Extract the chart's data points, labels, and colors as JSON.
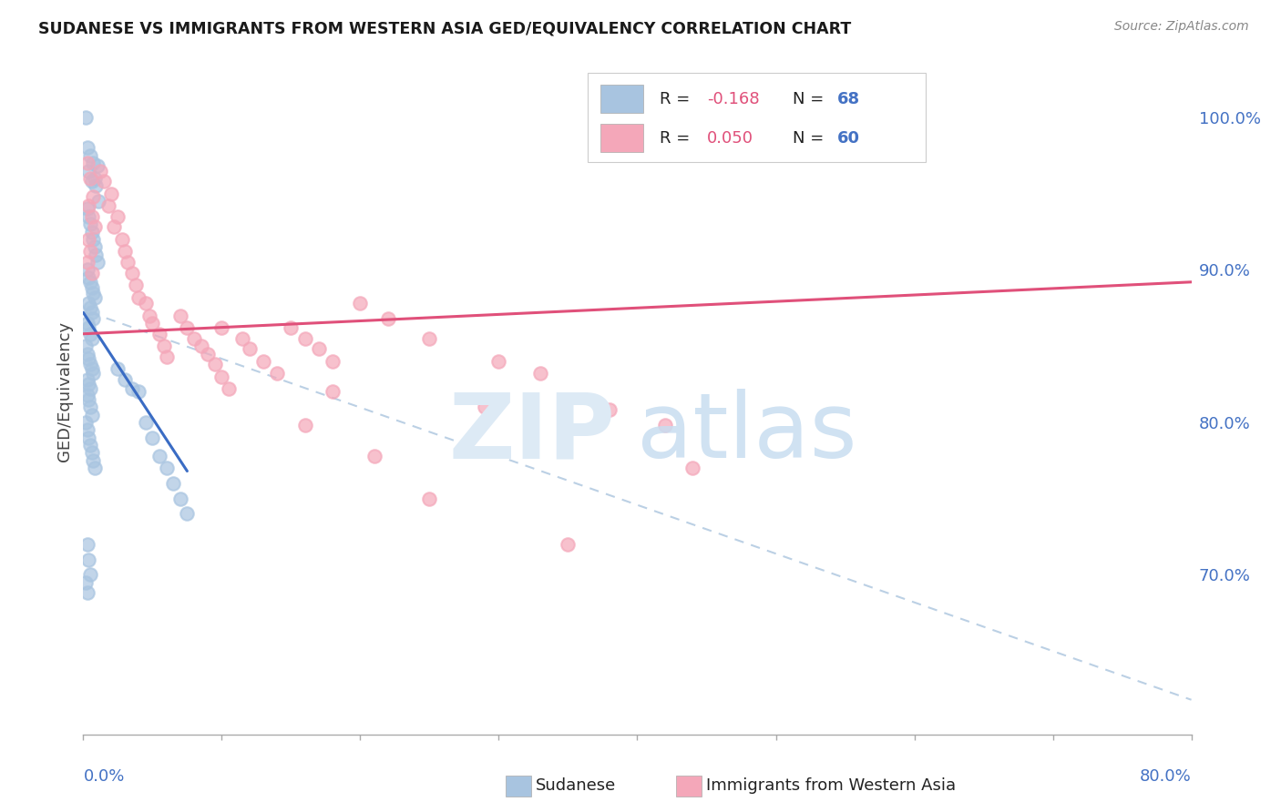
{
  "title": "SUDANESE VS IMMIGRANTS FROM WESTERN ASIA GED/EQUIVALENCY CORRELATION CHART",
  "source": "Source: ZipAtlas.com",
  "ylabel": "GED/Equivalency",
  "yticks_right": [
    0.7,
    0.8,
    0.9,
    1.0
  ],
  "ytick_labels_right": [
    "70.0%",
    "80.0%",
    "90.0%",
    "100.0%"
  ],
  "xlim": [
    0.0,
    0.8
  ],
  "ylim": [
    0.595,
    1.045
  ],
  "blue_color": "#a8c4e0",
  "pink_color": "#f4a7b9",
  "trend_blue": "#3a6cc4",
  "trend_pink": "#e0507a",
  "text_blue": "#4472c4",
  "background": "#ffffff",
  "grid_color": "#d8d8d8",
  "sudanese_x": [
    0.002,
    0.003,
    0.004,
    0.005,
    0.006,
    0.007,
    0.008,
    0.009,
    0.01,
    0.011,
    0.003,
    0.004,
    0.005,
    0.006,
    0.007,
    0.008,
    0.009,
    0.01,
    0.003,
    0.004,
    0.005,
    0.006,
    0.007,
    0.008,
    0.004,
    0.005,
    0.006,
    0.007,
    0.003,
    0.004,
    0.005,
    0.006,
    0.002,
    0.003,
    0.004,
    0.005,
    0.006,
    0.007,
    0.003,
    0.004,
    0.005,
    0.003,
    0.004,
    0.005,
    0.006,
    0.002,
    0.003,
    0.004,
    0.005,
    0.006,
    0.007,
    0.008,
    0.003,
    0.004,
    0.005,
    0.002,
    0.003,
    0.04,
    0.045,
    0.05,
    0.055,
    0.06,
    0.065,
    0.07,
    0.075,
    0.025,
    0.03,
    0.035
  ],
  "sudanese_y": [
    1.0,
    0.98,
    0.965,
    0.975,
    0.958,
    0.97,
    0.96,
    0.955,
    0.968,
    0.945,
    0.94,
    0.935,
    0.93,
    0.925,
    0.92,
    0.915,
    0.91,
    0.905,
    0.9,
    0.895,
    0.892,
    0.888,
    0.885,
    0.882,
    0.878,
    0.875,
    0.872,
    0.868,
    0.865,
    0.862,
    0.858,
    0.855,
    0.85,
    0.845,
    0.842,
    0.838,
    0.835,
    0.832,
    0.828,
    0.825,
    0.822,
    0.818,
    0.815,
    0.81,
    0.805,
    0.8,
    0.795,
    0.79,
    0.785,
    0.78,
    0.775,
    0.77,
    0.72,
    0.71,
    0.7,
    0.695,
    0.688,
    0.82,
    0.8,
    0.79,
    0.778,
    0.77,
    0.76,
    0.75,
    0.74,
    0.835,
    0.828,
    0.822
  ],
  "western_x": [
    0.003,
    0.005,
    0.007,
    0.004,
    0.006,
    0.008,
    0.004,
    0.005,
    0.003,
    0.006,
    0.012,
    0.015,
    0.02,
    0.018,
    0.025,
    0.022,
    0.028,
    0.03,
    0.032,
    0.035,
    0.038,
    0.04,
    0.045,
    0.048,
    0.05,
    0.055,
    0.058,
    0.06,
    0.07,
    0.075,
    0.08,
    0.085,
    0.09,
    0.095,
    0.1,
    0.105,
    0.115,
    0.12,
    0.13,
    0.14,
    0.15,
    0.16,
    0.17,
    0.18,
    0.2,
    0.22,
    0.25,
    0.3,
    0.33,
    0.38,
    0.42,
    0.1,
    0.25,
    0.35,
    0.18,
    0.29,
    0.16,
    0.21,
    0.44
  ],
  "western_y": [
    0.97,
    0.96,
    0.948,
    0.942,
    0.935,
    0.928,
    0.92,
    0.912,
    0.905,
    0.898,
    0.965,
    0.958,
    0.95,
    0.942,
    0.935,
    0.928,
    0.92,
    0.912,
    0.905,
    0.898,
    0.89,
    0.882,
    0.878,
    0.87,
    0.865,
    0.858,
    0.85,
    0.843,
    0.87,
    0.862,
    0.855,
    0.85,
    0.845,
    0.838,
    0.83,
    0.822,
    0.855,
    0.848,
    0.84,
    0.832,
    0.862,
    0.855,
    0.848,
    0.84,
    0.878,
    0.868,
    0.855,
    0.84,
    0.832,
    0.808,
    0.798,
    0.862,
    0.75,
    0.72,
    0.82,
    0.81,
    0.798,
    0.778,
    0.77
  ],
  "blue_trendline_x": [
    0.0,
    0.075
  ],
  "blue_trendline_y": [
    0.872,
    0.768
  ],
  "pink_trendline_x": [
    0.0,
    0.8
  ],
  "pink_trendline_y": [
    0.858,
    0.892
  ],
  "diag_line_x": [
    0.005,
    0.8
  ],
  "diag_line_y": [
    0.872,
    0.618
  ]
}
